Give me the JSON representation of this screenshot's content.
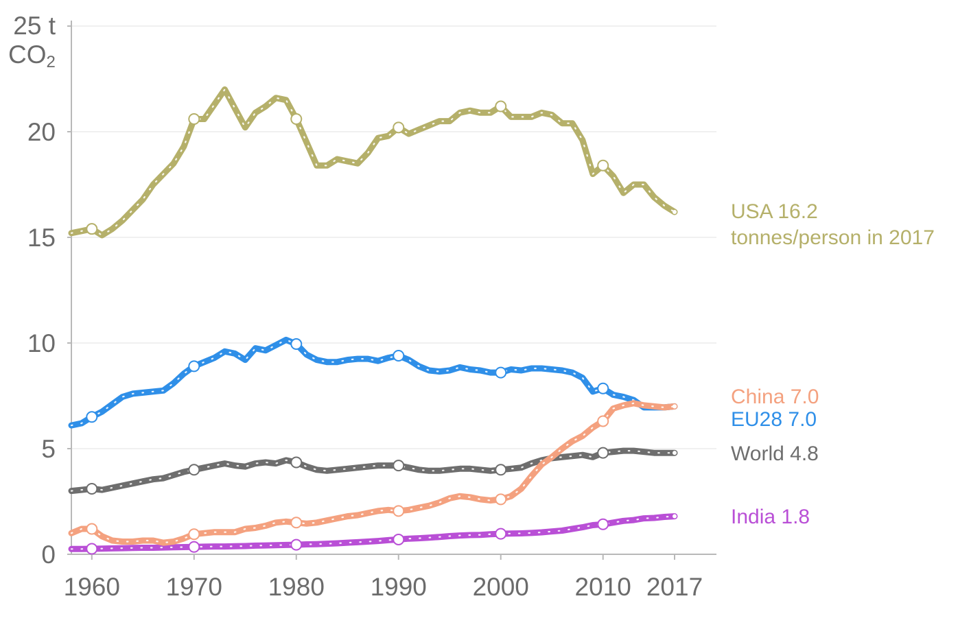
{
  "chart_data": {
    "type": "line",
    "title": "",
    "unit_top": "25 t",
    "unit_bottom": "CO",
    "unit_sub": "2",
    "xlabel": "",
    "ylabel": "",
    "x_range": [
      1958,
      2017
    ],
    "ylim": [
      0,
      25
    ],
    "y_ticks": [
      "0",
      "5",
      "10",
      "15",
      "20"
    ],
    "y_tick_values": [
      0,
      5,
      10,
      15,
      20
    ],
    "x_ticks": [
      "1960",
      "1970",
      "1980",
      "1990",
      "2000",
      "2010",
      "2017"
    ],
    "x_tick_values": [
      1960,
      1970,
      1980,
      1990,
      2000,
      2010,
      2017
    ],
    "grid": true,
    "series": [
      {
        "name": "USA",
        "color": "#b5b06a",
        "label": "USA 16.2",
        "label2": "tonnes/person in 2017",
        "x": [
          1958,
          1959,
          1960,
          1961,
          1962,
          1963,
          1964,
          1965,
          1966,
          1967,
          1968,
          1969,
          1970,
          1971,
          1972,
          1973,
          1974,
          1975,
          1976,
          1977,
          1978,
          1979,
          1980,
          1981,
          1982,
          1983,
          1984,
          1985,
          1986,
          1987,
          1988,
          1989,
          1990,
          1991,
          1992,
          1993,
          1994,
          1995,
          1996,
          1997,
          1998,
          1999,
          2000,
          2001,
          2002,
          2003,
          2004,
          2005,
          2006,
          2007,
          2008,
          2009,
          2010,
          2011,
          2012,
          2013,
          2014,
          2015,
          2016,
          2017
        ],
        "values": [
          15.2,
          15.3,
          15.4,
          15.1,
          15.4,
          15.8,
          16.3,
          16.8,
          17.5,
          18.0,
          18.5,
          19.3,
          20.6,
          20.6,
          21.3,
          22.0,
          21.1,
          20.2,
          20.9,
          21.2,
          21.6,
          21.5,
          20.6,
          19.5,
          18.4,
          18.4,
          18.7,
          18.6,
          18.5,
          19.0,
          19.7,
          19.8,
          20.2,
          19.9,
          20.1,
          20.3,
          20.5,
          20.5,
          20.9,
          21.0,
          20.9,
          20.9,
          21.2,
          20.7,
          20.7,
          20.7,
          20.9,
          20.8,
          20.4,
          20.4,
          19.6,
          18.0,
          18.4,
          17.9,
          17.1,
          17.5,
          17.5,
          16.9,
          16.5,
          16.2
        ],
        "markers_x": [
          1960,
          1970,
          1980,
          1990,
          2000,
          2010
        ],
        "markers": [
          15.4,
          20.6,
          20.6,
          20.2,
          21.2,
          18.4
        ]
      },
      {
        "name": "China",
        "color": "#f4a17f",
        "label": "China 7.0",
        "x": [
          1958,
          1959,
          1960,
          1961,
          1962,
          1963,
          1964,
          1965,
          1966,
          1967,
          1968,
          1969,
          1970,
          1971,
          1972,
          1973,
          1974,
          1975,
          1976,
          1977,
          1978,
          1979,
          1980,
          1981,
          1982,
          1983,
          1984,
          1985,
          1986,
          1987,
          1988,
          1989,
          1990,
          1991,
          1992,
          1993,
          1994,
          1995,
          1996,
          1997,
          1998,
          1999,
          2000,
          2001,
          2002,
          2003,
          2004,
          2005,
          2006,
          2007,
          2008,
          2009,
          2010,
          2011,
          2012,
          2013,
          2014,
          2015,
          2016,
          2017
        ],
        "values": [
          1.0,
          1.2,
          1.2,
          0.85,
          0.65,
          0.6,
          0.6,
          0.65,
          0.65,
          0.55,
          0.6,
          0.75,
          0.95,
          1.0,
          1.05,
          1.05,
          1.05,
          1.2,
          1.25,
          1.35,
          1.5,
          1.55,
          1.5,
          1.45,
          1.5,
          1.6,
          1.7,
          1.8,
          1.85,
          1.95,
          2.05,
          2.1,
          2.05,
          2.1,
          2.2,
          2.3,
          2.45,
          2.65,
          2.75,
          2.7,
          2.6,
          2.55,
          2.6,
          2.75,
          3.1,
          3.7,
          4.25,
          4.6,
          5.0,
          5.35,
          5.6,
          6.0,
          6.3,
          6.9,
          7.05,
          7.15,
          7.05,
          7.0,
          6.95,
          7.0
        ],
        "markers_x": [
          1960,
          1970,
          1980,
          1990,
          2000,
          2010
        ],
        "markers": [
          1.2,
          0.95,
          1.5,
          2.05,
          2.6,
          6.3
        ]
      },
      {
        "name": "EU28",
        "color": "#2f8fe8",
        "label": "EU28 7.0",
        "x": [
          1958,
          1959,
          1960,
          1961,
          1962,
          1963,
          1964,
          1965,
          1966,
          1967,
          1968,
          1969,
          1970,
          1971,
          1972,
          1973,
          1974,
          1975,
          1976,
          1977,
          1978,
          1979,
          1980,
          1981,
          1982,
          1983,
          1984,
          1985,
          1986,
          1987,
          1988,
          1989,
          1990,
          1991,
          1992,
          1993,
          1994,
          1995,
          1996,
          1997,
          1998,
          1999,
          2000,
          2001,
          2002,
          2003,
          2004,
          2005,
          2006,
          2007,
          2008,
          2009,
          2010,
          2011,
          2012,
          2013,
          2014,
          2015,
          2016,
          2017
        ],
        "values": [
          6.1,
          6.2,
          6.5,
          6.75,
          7.1,
          7.45,
          7.6,
          7.65,
          7.7,
          7.75,
          8.1,
          8.55,
          8.9,
          9.1,
          9.3,
          9.6,
          9.5,
          9.2,
          9.75,
          9.65,
          9.9,
          10.15,
          9.95,
          9.45,
          9.2,
          9.1,
          9.1,
          9.2,
          9.25,
          9.25,
          9.15,
          9.3,
          9.4,
          9.2,
          8.9,
          8.7,
          8.65,
          8.7,
          8.85,
          8.75,
          8.7,
          8.6,
          8.6,
          8.75,
          8.7,
          8.8,
          8.8,
          8.75,
          8.7,
          8.6,
          8.35,
          7.7,
          7.85,
          7.55,
          7.45,
          7.3,
          6.95,
          6.95,
          6.95,
          7.0
        ],
        "markers_x": [
          1960,
          1970,
          1980,
          1990,
          2000,
          2010
        ],
        "markers": [
          6.5,
          8.9,
          9.95,
          9.4,
          8.6,
          7.85
        ]
      },
      {
        "name": "World",
        "color": "#6e6e6e",
        "label": "World 4.8",
        "x": [
          1958,
          1959,
          1960,
          1961,
          1962,
          1963,
          1964,
          1965,
          1966,
          1967,
          1968,
          1969,
          1970,
          1971,
          1972,
          1973,
          1974,
          1975,
          1976,
          1977,
          1978,
          1979,
          1980,
          1981,
          1982,
          1983,
          1984,
          1985,
          1986,
          1987,
          1988,
          1989,
          1990,
          1991,
          1992,
          1993,
          1994,
          1995,
          1996,
          1997,
          1998,
          1999,
          2000,
          2001,
          2002,
          2003,
          2004,
          2005,
          2006,
          2007,
          2008,
          2009,
          2010,
          2011,
          2012,
          2013,
          2014,
          2015,
          2016,
          2017
        ],
        "values": [
          3.0,
          3.05,
          3.1,
          3.05,
          3.15,
          3.25,
          3.35,
          3.45,
          3.55,
          3.6,
          3.75,
          3.9,
          4.0,
          4.1,
          4.2,
          4.3,
          4.2,
          4.15,
          4.3,
          4.35,
          4.3,
          4.45,
          4.35,
          4.15,
          4.0,
          3.95,
          4.0,
          4.05,
          4.1,
          4.15,
          4.2,
          4.2,
          4.2,
          4.1,
          4.0,
          3.95,
          3.95,
          4.0,
          4.05,
          4.05,
          4.0,
          3.95,
          4.0,
          4.05,
          4.1,
          4.3,
          4.45,
          4.55,
          4.6,
          4.65,
          4.7,
          4.6,
          4.8,
          4.85,
          4.9,
          4.9,
          4.85,
          4.8,
          4.8,
          4.8
        ],
        "markers_x": [
          1960,
          1970,
          1980,
          1990,
          2000,
          2010
        ],
        "markers": [
          3.1,
          4.0,
          4.35,
          4.2,
          4.0,
          4.8
        ]
      },
      {
        "name": "India",
        "color": "#b94fd6",
        "label": "India 1.8",
        "x": [
          1958,
          1959,
          1960,
          1961,
          1962,
          1963,
          1964,
          1965,
          1966,
          1967,
          1968,
          1969,
          1970,
          1971,
          1972,
          1973,
          1974,
          1975,
          1976,
          1977,
          1978,
          1979,
          1980,
          1981,
          1982,
          1983,
          1984,
          1985,
          1986,
          1987,
          1988,
          1989,
          1990,
          1991,
          1992,
          1993,
          1994,
          1995,
          1996,
          1997,
          1998,
          1999,
          2000,
          2001,
          2002,
          2003,
          2004,
          2005,
          2006,
          2007,
          2008,
          2009,
          2010,
          2011,
          2012,
          2013,
          2014,
          2015,
          2016,
          2017
        ],
        "values": [
          0.25,
          0.25,
          0.26,
          0.27,
          0.28,
          0.29,
          0.3,
          0.31,
          0.31,
          0.32,
          0.33,
          0.34,
          0.35,
          0.36,
          0.37,
          0.37,
          0.38,
          0.39,
          0.41,
          0.42,
          0.43,
          0.44,
          0.45,
          0.47,
          0.48,
          0.5,
          0.52,
          0.55,
          0.57,
          0.6,
          0.63,
          0.67,
          0.7,
          0.74,
          0.76,
          0.79,
          0.82,
          0.86,
          0.89,
          0.91,
          0.92,
          0.95,
          0.97,
          0.98,
          0.99,
          1.01,
          1.04,
          1.08,
          1.12,
          1.2,
          1.28,
          1.38,
          1.42,
          1.5,
          1.58,
          1.62,
          1.7,
          1.72,
          1.77,
          1.8
        ],
        "markers_x": [
          1960,
          1970,
          1980,
          1990,
          2000,
          2010
        ],
        "markers": [
          0.26,
          0.35,
          0.45,
          0.7,
          0.97,
          1.42
        ]
      }
    ]
  }
}
